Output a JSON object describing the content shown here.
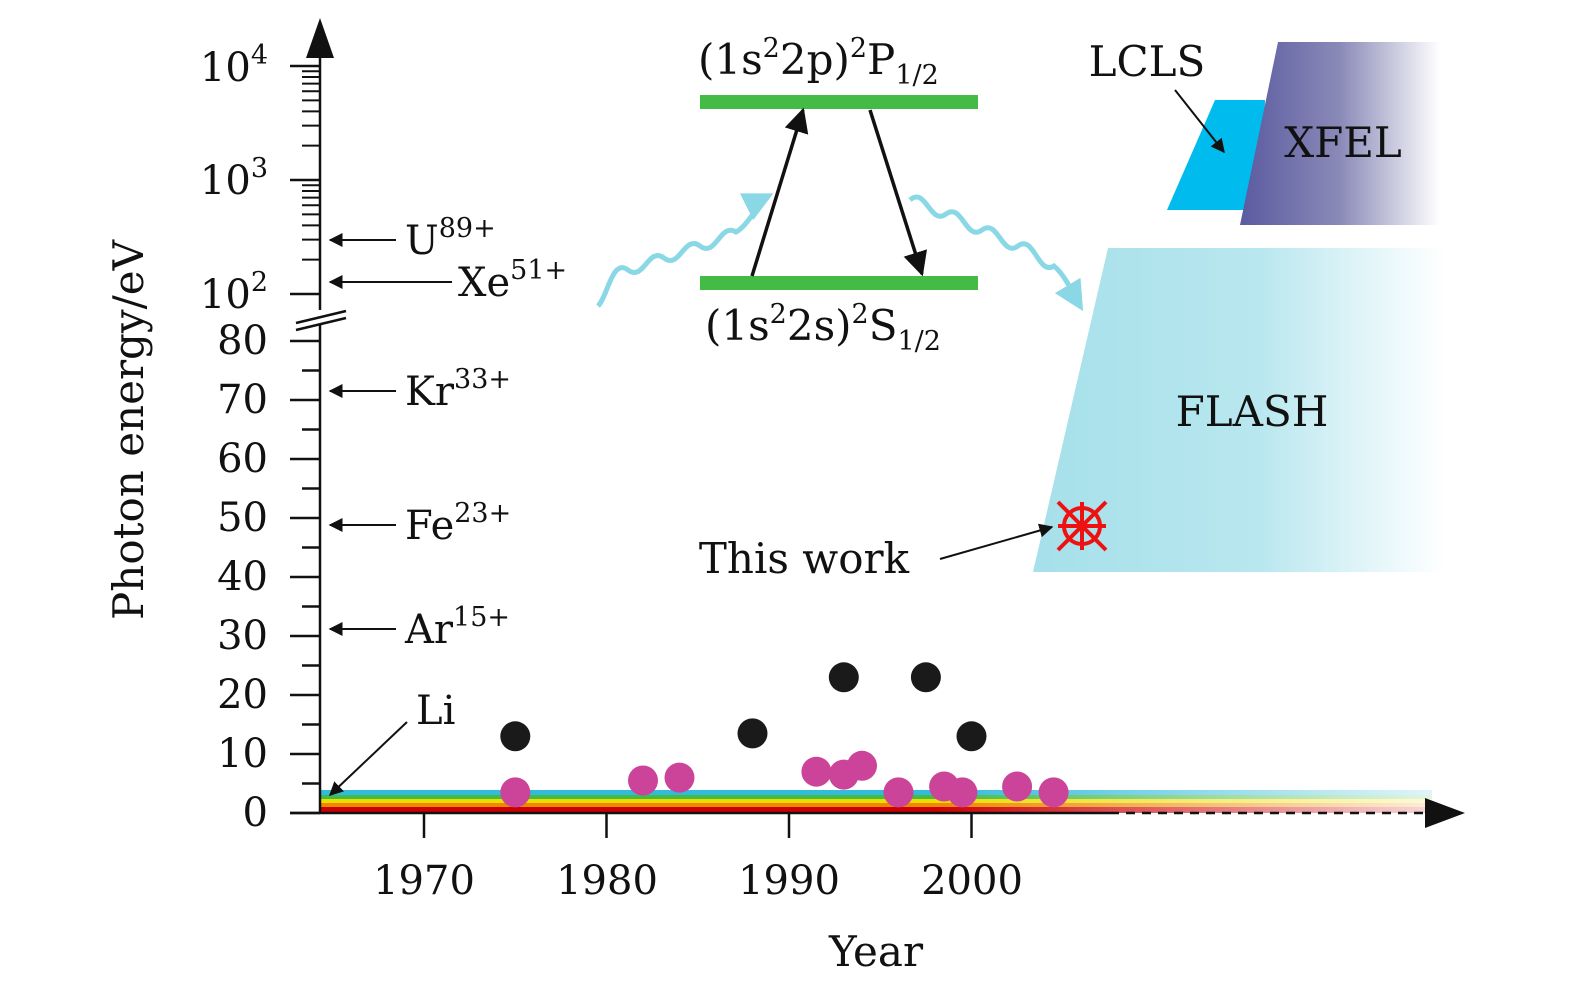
{
  "chart_data": {
    "type": "scatter",
    "title": "",
    "xlabel": "Year",
    "ylabel": "Photon energy/eV",
    "x_ticks": [
      "1970",
      "1980",
      "1990",
      "2000"
    ],
    "y_ticks_linear": [
      "0",
      "10",
      "20",
      "30",
      "40",
      "50",
      "60",
      "70",
      "80"
    ],
    "y_ticks_log": [
      {
        "base": "10",
        "exp": "2"
      },
      {
        "base": "10",
        "exp": "3"
      },
      {
        "base": "10",
        "exp": "4"
      }
    ],
    "y_axis_break": "between 80 eV and 10^2 eV",
    "series": [
      {
        "color": "#1a1a1a",
        "points": [
          [
            1975,
            13
          ],
          [
            1988,
            13.5
          ],
          [
            1993,
            23
          ],
          [
            1997.5,
            23
          ],
          [
            2000,
            13
          ]
        ]
      },
      {
        "color": "#cc4499",
        "points": [
          [
            1975,
            3.5
          ],
          [
            1982,
            5.5
          ],
          [
            1984,
            6
          ],
          [
            1991.5,
            7
          ],
          [
            1993,
            6.5
          ],
          [
            1994,
            8
          ],
          [
            1996,
            3.5
          ],
          [
            1998.5,
            4.5
          ],
          [
            1999.5,
            3.5
          ],
          [
            2002.5,
            4.5
          ],
          [
            2004.5,
            3.5
          ]
        ]
      }
    ],
    "ion_markers": [
      {
        "base": "U",
        "charge": "89+",
        "energy": "≈290 eV"
      },
      {
        "base": "Xe",
        "charge": "51+",
        "energy": "≈130 eV"
      },
      {
        "base": "Kr",
        "charge": "33+",
        "energy": 71
      },
      {
        "base": "Fe",
        "charge": "23+",
        "energy": 48.6
      },
      {
        "base": "Ar",
        "charge": "15+",
        "energy": 31
      },
      {
        "base": "Li",
        "charge": "",
        "energy": 2
      }
    ],
    "facilities": [
      {
        "name": "LCLS",
        "color": "#00bbee"
      },
      {
        "name": "XFEL",
        "color": "#5a5aa0"
      },
      {
        "name": "FLASH",
        "color": "#a6e0ea"
      }
    ],
    "this_work": {
      "label": "This work",
      "year": 2005,
      "energy": 48.6,
      "color": "#ee1111"
    },
    "level_diagram": {
      "upper": {
        "prefix": "(1s",
        "sup1": "2",
        "mid": "2p)",
        "sup2": "2",
        "term": "P",
        "sub": "1/2"
      },
      "lower": {
        "prefix": "(1s",
        "sup1": "2",
        "mid": "2s)",
        "sup2": "2",
        "term": "S",
        "sub": "1/2"
      },
      "level_color": "#44bb44",
      "photon_color": "#8ad8e6"
    },
    "laser_band_colors": [
      "#cc0000",
      "#ee8800",
      "#eedd00",
      "#44bb44",
      "#33bbdd"
    ]
  }
}
